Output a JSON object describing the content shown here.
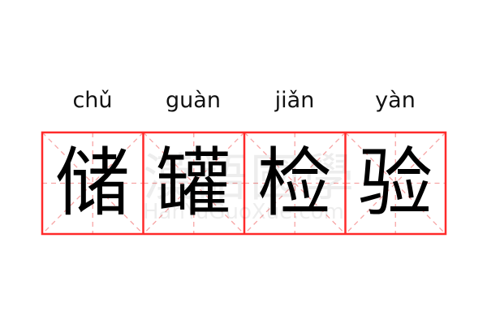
{
  "pinyin": [
    "chǔ",
    "guàn",
    "jiǎn",
    "yàn"
  ],
  "characters": [
    "储",
    "罐",
    "检",
    "验"
  ],
  "watermark": {
    "chinese": "漢語國學",
    "latin": "HanYuGuoXue.com"
  },
  "colors": {
    "border": "#ff2a2a",
    "guide": "#f7a5a5",
    "text": "#000000"
  }
}
